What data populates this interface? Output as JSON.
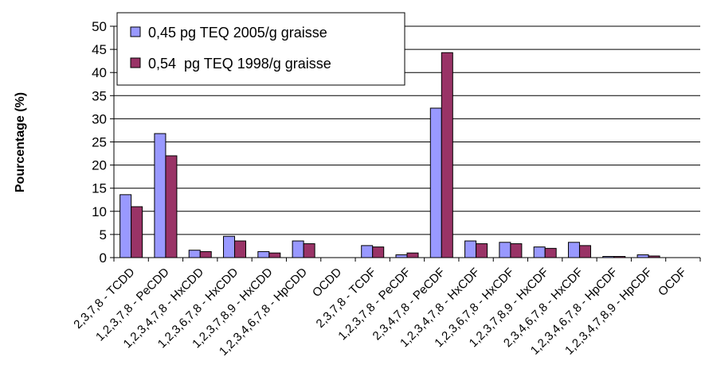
{
  "chart_data": {
    "type": "bar",
    "title": "",
    "xlabel": "",
    "ylabel": "Pourcentage (%)",
    "ylim": [
      0,
      50
    ],
    "yticks": [
      0,
      5,
      10,
      15,
      20,
      25,
      30,
      35,
      40,
      45,
      50
    ],
    "grid": "horizontal",
    "legend_position": "top-center",
    "categories": [
      "2,3,7,8 - TCDD",
      "1,2,3,7,8 - PeCDD",
      "1,2,3,4,7,8 - HxCDD",
      "1,2,3,6,7,8 - HxCDD",
      "1,2,3,7,8,9 - HxCDD",
      "1,2,3,4,6,7,8 - HpCDD",
      "OCDD",
      "2,3,7,8 - TCDF",
      "1,2,3,7,8 - PeCDF",
      "2,3,4,7,8 - PeCDF",
      "1,2,3,4,7,8 - HxCDF",
      "1,2,3,6,7,8 - HxCDF",
      "1,2,3,7,8,9 - HxCDF",
      "2,3,4,6,7,8 - HxCDF",
      "1,2,3,4,6,7,8 - HpCDF",
      "1,2,3,4,7,8,9 - HpCDF",
      "OCDF"
    ],
    "series": [
      {
        "name": "0,45 pg TEQ 2005/g graisse",
        "color": "#9999ff",
        "values": [
          13.6,
          26.8,
          1.6,
          4.6,
          1.3,
          3.6,
          0.0,
          2.6,
          0.6,
          32.3,
          3.6,
          3.3,
          2.3,
          3.3,
          0.25,
          0.6,
          0.0
        ]
      },
      {
        "name": "0,54  pg TEQ 1998/g graisse",
        "color": "#993366",
        "values": [
          11.0,
          22.0,
          1.3,
          3.6,
          1.0,
          3.0,
          0.0,
          2.3,
          1.0,
          44.3,
          3.0,
          3.0,
          2.0,
          2.6,
          0.25,
          0.35,
          0.0
        ]
      }
    ]
  }
}
